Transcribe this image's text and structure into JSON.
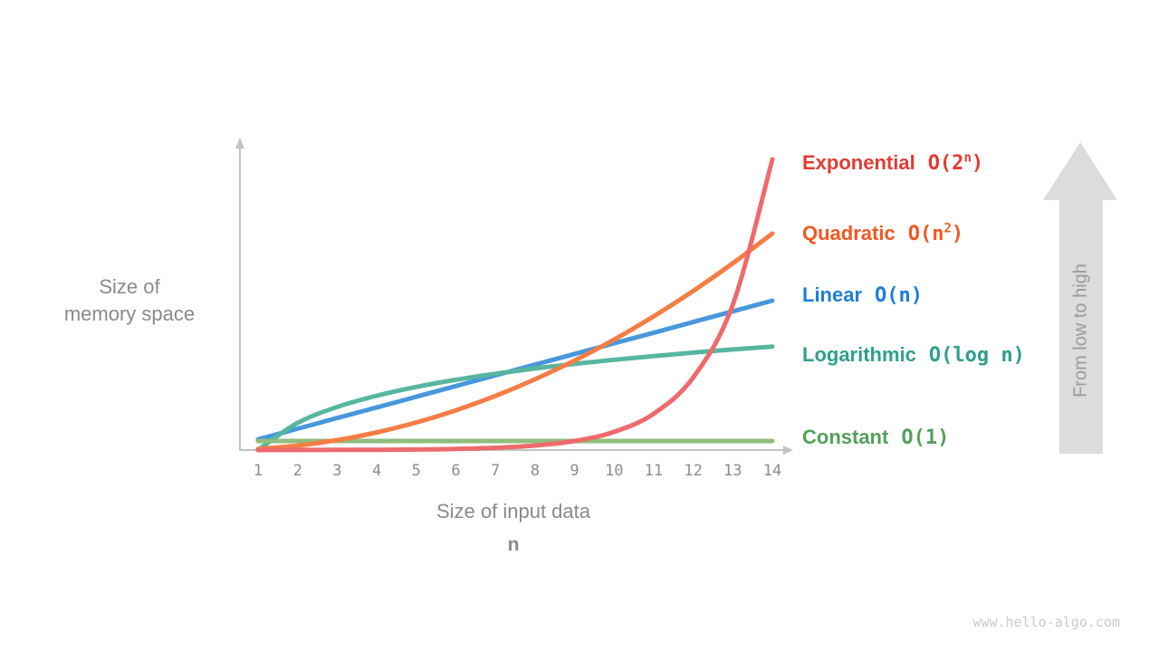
{
  "page": {
    "watermark": "www.hello-algo.com"
  },
  "ylabel": {
    "line1": "Size of",
    "line2": "memory space"
  },
  "xlabel": {
    "title": "Size of input data",
    "symbol": "n"
  },
  "side_arrow": {
    "text": "From low to high",
    "fill": "#dcdcdc",
    "text_color": "#9a9a9a"
  },
  "axes_color": "#c4c4c4",
  "legend": {
    "items": [
      {
        "name": "Exponential",
        "formula_pre": "O(2",
        "formula_sup": "n",
        "formula_post": ")",
        "color": "#e23b33"
      },
      {
        "name": "Quadratic",
        "formula_pre": "O(n",
        "formula_sup": "2",
        "formula_post": ")",
        "color": "#f2571f"
      },
      {
        "name": "Linear",
        "formula_pre": "O(n)",
        "formula_sup": "",
        "formula_post": "",
        "color": "#1d7ed8"
      },
      {
        "name": "Logarithmic",
        "formula_pre": "O(log n)",
        "formula_sup": "",
        "formula_post": "",
        "color": "#2f9f8e"
      },
      {
        "name": "Constant",
        "formula_pre": "O(1)",
        "formula_sup": "",
        "formula_post": "",
        "color": "#52a05a"
      }
    ]
  },
  "chart_data": {
    "type": "line",
    "title": "",
    "xlabel": "Size of input data (n)",
    "ylabel": "Size of memory space",
    "x": [
      1,
      2,
      3,
      4,
      5,
      6,
      7,
      8,
      9,
      10,
      11,
      12,
      13,
      14
    ],
    "x_range": [
      1,
      14
    ],
    "y_axis_note": "schematic, no numeric ticks; arrowed axes",
    "grid": false,
    "legend_position": "right",
    "annotation": "From low to high (vertical arrow at right)",
    "series": [
      {
        "name": "Linear",
        "formula": "O(n)",
        "color": "#4897dd",
        "z": 1,
        "values": [
          1,
          2,
          3,
          4,
          5,
          6,
          7,
          8,
          9,
          10,
          11,
          12,
          13,
          14
        ],
        "end_height_frac": 0.514
      },
      {
        "name": "Logarithmic",
        "formula": "O(log n)",
        "color": "#57b6a0",
        "z": 2,
        "values": [
          0,
          1,
          1.585,
          2,
          2.322,
          2.585,
          2.807,
          3,
          3.17,
          3.322,
          3.459,
          3.585,
          3.7,
          3.807
        ],
        "end_height_frac": 0.356
      },
      {
        "name": "Constant",
        "formula": "O(1)",
        "color": "#8fbe7d",
        "z": 3,
        "values": [
          1,
          1,
          1,
          1,
          1,
          1,
          1,
          1,
          1,
          1,
          1,
          1,
          1,
          1
        ],
        "end_height_frac": 0.031
      },
      {
        "name": "Quadratic",
        "formula": "O(n^2)",
        "color": "#f57d45",
        "z": 4,
        "values": [
          1,
          4,
          9,
          16,
          25,
          36,
          49,
          64,
          81,
          100,
          121,
          144,
          169,
          196
        ],
        "end_height_frac": 0.745
      },
      {
        "name": "Exponential",
        "formula": "O(2^n)",
        "color": "#ee6a6c",
        "z": 5,
        "values": [
          2,
          4,
          8,
          16,
          32,
          64,
          128,
          256,
          512,
          1024,
          2048,
          4096,
          8192,
          16384
        ],
        "end_height_frac": 1.0
      }
    ]
  }
}
